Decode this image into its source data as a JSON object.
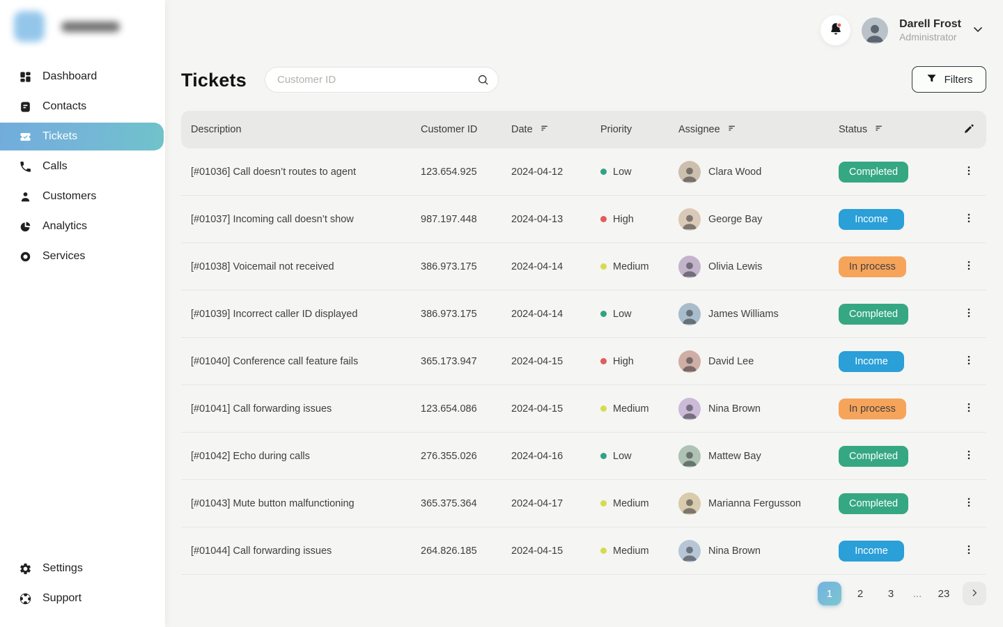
{
  "sidebar": {
    "items": [
      {
        "label": "Dashboard",
        "icon": "dashboard-icon",
        "active": false
      },
      {
        "label": "Contacts",
        "icon": "contacts-icon",
        "active": false
      },
      {
        "label": "Tickets",
        "icon": "ticket-icon",
        "active": true
      },
      {
        "label": "Calls",
        "icon": "phone-icon",
        "active": false
      },
      {
        "label": "Customers",
        "icon": "customers-icon",
        "active": false
      },
      {
        "label": "Analytics",
        "icon": "analytics-icon",
        "active": false
      },
      {
        "label": "Services",
        "icon": "services-icon",
        "active": false
      }
    ],
    "footer_items": [
      {
        "label": "Settings",
        "icon": "gear-icon"
      },
      {
        "label": "Support",
        "icon": "lifebuoy-icon"
      }
    ]
  },
  "topbar": {
    "user": {
      "name": "Darell Frost",
      "role": "Administrator"
    },
    "notifications_icon": "bell-icon"
  },
  "page": {
    "title": "Tickets",
    "search": {
      "placeholder": "Customer ID",
      "icon": "search-icon"
    },
    "filters_button": {
      "label": "Filters",
      "icon": "funnel-icon"
    }
  },
  "table": {
    "columns": [
      {
        "label": "Description",
        "sortable": false
      },
      {
        "label": "Customer ID",
        "sortable": false
      },
      {
        "label": "Date",
        "sortable": true
      },
      {
        "label": "Priority",
        "sortable": false
      },
      {
        "label": "Assignee",
        "sortable": true
      },
      {
        "label": "Status",
        "sortable": true
      }
    ],
    "rows": [
      {
        "description": "[#01036] Call doesn’t routes to agent",
        "customer_id": "123.654.925",
        "date": "2024-04-12",
        "priority": "Low",
        "assignee": "Clara Wood",
        "status": "Completed"
      },
      {
        "description": "[#01037] Incoming call doesn’t show",
        "customer_id": "987.197.448",
        "date": "2024-04-13",
        "priority": "High",
        "assignee": "George Bay",
        "status": "Income"
      },
      {
        "description": "[#01038] Voicemail not received",
        "customer_id": "386.973.175",
        "date": "2024-04-14",
        "priority": "Medium",
        "assignee": "Olivia Lewis",
        "status": "In process"
      },
      {
        "description": "[#01039] Incorrect caller ID displayed",
        "customer_id": "386.973.175",
        "date": "2024-04-14",
        "priority": "Low",
        "assignee": "James Williams",
        "status": "Completed"
      },
      {
        "description": "[#01040] Conference call feature fails",
        "customer_id": "365.173.947",
        "date": "2024-04-15",
        "priority": "High",
        "assignee": "David Lee",
        "status": "Income"
      },
      {
        "description": "[#01041] Call forwarding issues",
        "customer_id": "123.654.086",
        "date": "2024-04-15",
        "priority": "Medium",
        "assignee": "Nina Brown",
        "status": "In process"
      },
      {
        "description": "[#01042] Echo during calls",
        "customer_id": "276.355.026",
        "date": "2024-04-16",
        "priority": "Low",
        "assignee": "Mattew Bay",
        "status": "Completed"
      },
      {
        "description": "[#01043] Mute button malfunctioning",
        "customer_id": "365.375.364",
        "date": "2024-04-17",
        "priority": "Medium",
        "assignee": "Marianna Fergusson",
        "status": "Completed"
      },
      {
        "description": "[#01044] Call forwarding issues",
        "customer_id": "264.826.185",
        "date": "2024-04-15",
        "priority": "Medium",
        "assignee": "Nina Brown",
        "status": "Income"
      }
    ]
  },
  "pagination": {
    "pages": [
      "1",
      "2",
      "3",
      "...",
      "23"
    ],
    "active_page": "1",
    "next_icon": "chevron-right-icon"
  },
  "colors": {
    "accent_gradient": [
      "#72ACDC",
      "#6FC3CA"
    ],
    "status": {
      "Completed": {
        "bg": "#35A783",
        "text": "#FFFFFF"
      },
      "Income": {
        "bg": "#2A9FD8",
        "text": "#FFFFFF"
      },
      "In process": {
        "bg": "#F7A45B",
        "text": "#3F3F3F"
      }
    },
    "priority": {
      "Low": "#2FA383",
      "Medium": "#D8DA4E",
      "High": "#E25C5C"
    },
    "notification_dot": "#E25C5C"
  }
}
